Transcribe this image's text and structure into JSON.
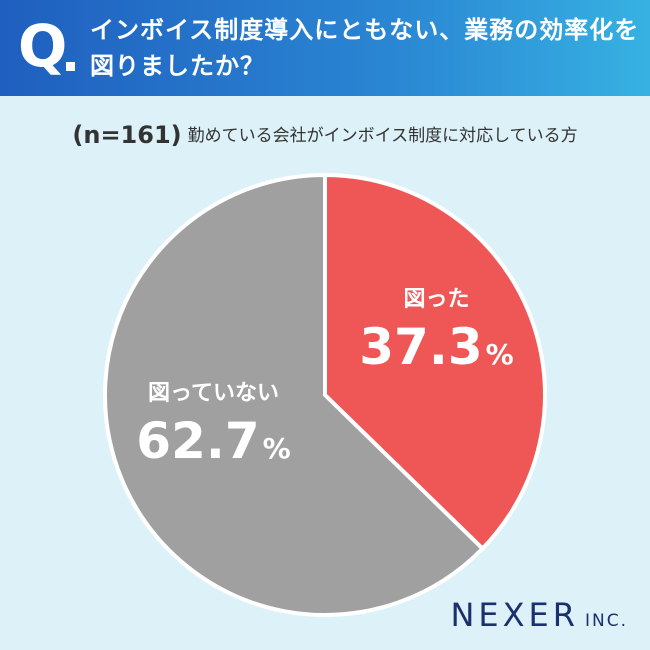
{
  "header": {
    "q_mark": "Q",
    "question": "インボイス制度導入にともない、業務の効率化を図りましたか？"
  },
  "subtitle": {
    "n": "(n=161)",
    "text": "勤めている会社がインボイス制度に対応している方"
  },
  "chart_data": {
    "type": "pie",
    "slices": [
      {
        "label": "図った",
        "value": 37.3,
        "display": "37.3",
        "color": "#ef5656"
      },
      {
        "label": "図っていない",
        "value": 62.7,
        "display": "62.7",
        "color": "#a0a0a0"
      }
    ],
    "unit": "%",
    "start": "top",
    "direction": "clockwise"
  },
  "colors": {
    "background": "#ddf2f8",
    "header_start": "#1f5fbf",
    "header_end": "#37b1e2",
    "logo": "#1c2f6e"
  },
  "logo": {
    "name": "NEXER",
    "suffix": "INC."
  }
}
